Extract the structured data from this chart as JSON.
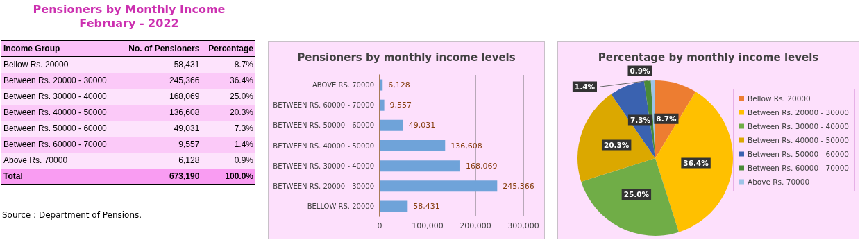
{
  "chart_data": [
    {
      "type": "other",
      "title": "Pensioners by Monthly Income",
      "subtitle": "February - 2022",
      "xlabel": "Income Group",
      "categories": [
        "Bellow Rs. 20000",
        "Between Rs. 20000 - 30000",
        "Between Rs. 30000 - 40000",
        "Between Rs. 40000 - 50000",
        "Between Rs. 50000 - 60000",
        "Between Rs. 60000 - 70000",
        "Above Rs. 70000"
      ],
      "annotations": [
        "No. of Pensioners",
        "Percentage",
        "58,431",
        "8.7%",
        "245,366",
        "36.4%",
        "168,069",
        "25.0%",
        "136,608",
        "20.3%",
        "49,031",
        "7.3%",
        "9,557",
        "1.4%",
        "6,128",
        "0.9%",
        "Total",
        "673,190",
        "100.0%",
        "Source : Department of Pensions."
      ]
    },
    {
      "type": "bar",
      "orientation": "horizontal",
      "title": "Pensioners by monthly income levels",
      "categories": [
        "ABOVE RS. 70000",
        "BETWEEN RS. 60000 - 70000",
        "BETWEEN RS. 50000 - 60000",
        "BETWEEN RS. 40000 - 50000",
        "BETWEEN RS. 30000 - 40000",
        "BETWEEN RS. 20000 - 30000",
        "BELLOW RS. 20000"
      ],
      "values": [
        6128,
        9557,
        49031,
        136608,
        168069,
        245366,
        58431
      ],
      "value_labels": [
        "6,128",
        "9,557",
        "49,031",
        "136,608",
        "168,069",
        "245,366",
        "58,431"
      ],
      "color": "#6fa3d9",
      "xlim": [
        0,
        300000
      ],
      "xticks": [
        0,
        {
          "value": 100000,
          "label": "100,000"
        },
        {
          "value": 200000,
          "label": "200,000"
        },
        {
          "value": 300000,
          "label": "300,000"
        }
      ],
      "grid": "x",
      "legend": false
    },
    {
      "type": "pie",
      "title": "Percentage by monthly income levels",
      "categories": [
        "Bellow Rs. 20000",
        "Between Rs. 20000 - 30000",
        "Between Rs. 30000 - 40000",
        "Between Rs. 40000 - 50000",
        "Between Rs. 50000 - 60000",
        "Between Rs. 60000 - 70000",
        "Above Rs. 70000"
      ],
      "values": [
        8.7,
        36.4,
        25.0,
        20.3,
        7.3,
        1.4,
        0.9
      ],
      "value_labels": [
        "8.7%",
        "36.4%",
        "25.0%",
        "20.3%",
        "7.3%",
        "1.4%",
        "0.9%"
      ],
      "colors": [
        "#ed7d31",
        "#ffc000",
        "#70ad47",
        "#dba800",
        "#3a62b0",
        "#4a8a38",
        "#9dc3e6"
      ],
      "legend": "right"
    }
  ]
}
